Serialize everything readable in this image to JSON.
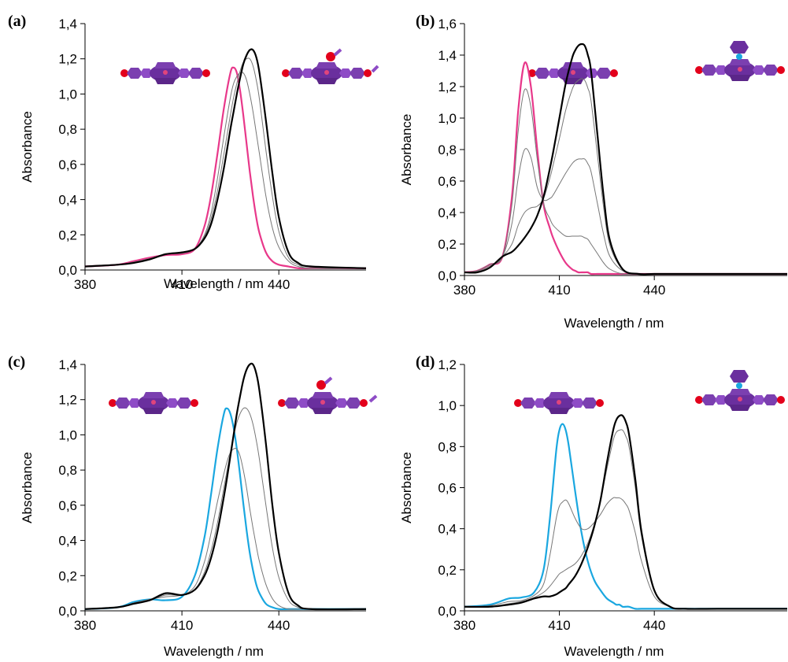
{
  "chart_data": [
    {
      "type": "line",
      "panel": "(a)",
      "xlabel": "Wavelength / nm",
      "ylabel": "Absorbance",
      "xlim": [
        380,
        467
      ],
      "ylim": [
        0,
        1.4
      ],
      "xticks": [
        380,
        410,
        440
      ],
      "yticks": [
        {
          "value": 0,
          "label": "0,0"
        },
        {
          "value": 0.2,
          "label": "0,2"
        },
        {
          "value": 0.4,
          "label": "0,4"
        },
        {
          "value": 0.6,
          "label": "0,6"
        },
        {
          "value": 0.8,
          "label": "0,8"
        },
        {
          "value": 1.0,
          "label": "1,0"
        },
        {
          "value": 1.2,
          "label": "1,2"
        },
        {
          "value": 1.4,
          "label": "1,4"
        }
      ],
      "x": [
        380,
        390,
        395,
        400,
        405,
        410,
        414,
        417,
        419,
        421,
        423,
        425,
        426,
        427,
        428,
        429,
        430,
        431,
        432,
        433,
        434,
        436,
        438,
        440,
        443,
        446,
        450,
        467
      ],
      "series": [
        {
          "color": "#e8388a",
          "values": [
            0.02,
            0.03,
            0.05,
            0.07,
            0.085,
            0.09,
            0.12,
            0.25,
            0.42,
            0.66,
            0.92,
            1.12,
            1.15,
            1.12,
            1.02,
            0.88,
            0.72,
            0.56,
            0.42,
            0.3,
            0.21,
            0.1,
            0.05,
            0.03,
            0.02,
            0.01,
            0.01,
            0.01
          ]
        },
        {
          "color": "#777777",
          "values": [
            0.02,
            0.03,
            0.045,
            0.065,
            0.09,
            0.095,
            0.12,
            0.2,
            0.32,
            0.52,
            0.76,
            0.98,
            1.06,
            1.1,
            1.12,
            1.12,
            1.08,
            1.0,
            0.9,
            0.78,
            0.66,
            0.42,
            0.24,
            0.13,
            0.05,
            0.02,
            0.01,
            0.01
          ]
        },
        {
          "color": "#777777",
          "values": [
            0.02,
            0.03,
            0.04,
            0.06,
            0.09,
            0.1,
            0.12,
            0.19,
            0.29,
            0.45,
            0.66,
            0.88,
            0.98,
            1.06,
            1.13,
            1.18,
            1.2,
            1.2,
            1.16,
            1.08,
            0.97,
            0.68,
            0.42,
            0.22,
            0.07,
            0.03,
            0.01,
            0.01
          ]
        },
        {
          "color": "#000000",
          "values": [
            0.02,
            0.03,
            0.04,
            0.06,
            0.09,
            0.1,
            0.12,
            0.18,
            0.26,
            0.4,
            0.58,
            0.8,
            0.9,
            1.0,
            1.09,
            1.17,
            1.22,
            1.25,
            1.25,
            1.21,
            1.12,
            0.85,
            0.55,
            0.3,
            0.1,
            0.04,
            0.02,
            0.01
          ]
        }
      ]
    },
    {
      "type": "line",
      "panel": "(b)",
      "xlabel": "Wavelength / nm",
      "ylabel": "Absorbance",
      "xlim": [
        380,
        482
      ],
      "ylim": [
        0,
        1.6
      ],
      "xticks": [
        380,
        410,
        440
      ],
      "yticks": [
        {
          "value": 0,
          "label": "0,0"
        },
        {
          "value": 0.2,
          "label": "0,2"
        },
        {
          "value": 0.4,
          "label": "0,4"
        },
        {
          "value": 0.6,
          "label": "0,6"
        },
        {
          "value": 0.8,
          "label": "0,8"
        },
        {
          "value": 1.0,
          "label": "1,0"
        },
        {
          "value": 1.2,
          "label": "1,2"
        },
        {
          "value": 1.4,
          "label": "1,4"
        },
        {
          "value": 1.6,
          "label": "1,6"
        }
      ],
      "x": [
        380,
        384,
        388,
        392,
        395,
        397,
        399,
        401,
        403,
        405,
        407,
        408,
        410,
        412,
        414,
        415,
        416,
        417,
        418,
        419,
        420,
        422,
        424,
        426,
        430,
        435,
        440,
        450,
        482
      ],
      "series": [
        {
          "color": "#e8388a",
          "values": [
            0.02,
            0.03,
            0.07,
            0.12,
            0.5,
            1.05,
            1.35,
            1.2,
            0.8,
            0.45,
            0.3,
            0.24,
            0.15,
            0.08,
            0.04,
            0.03,
            0.02,
            0.02,
            0.02,
            0.02,
            0.01,
            0.01,
            0.01,
            0.01,
            0.01,
            0.01,
            0.01,
            0.01,
            0.01
          ]
        },
        {
          "color": "#777777",
          "values": [
            0.02,
            0.03,
            0.07,
            0.12,
            0.45,
            0.92,
            1.18,
            1.07,
            0.74,
            0.46,
            0.36,
            0.32,
            0.28,
            0.25,
            0.25,
            0.25,
            0.25,
            0.25,
            0.24,
            0.23,
            0.2,
            0.14,
            0.08,
            0.04,
            0.01,
            0.01,
            0.01,
            0.01,
            0.01
          ]
        },
        {
          "color": "#777777",
          "values": [
            0.02,
            0.025,
            0.06,
            0.12,
            0.33,
            0.62,
            0.8,
            0.75,
            0.56,
            0.48,
            0.49,
            0.51,
            0.58,
            0.65,
            0.71,
            0.73,
            0.74,
            0.74,
            0.74,
            0.71,
            0.66,
            0.46,
            0.26,
            0.12,
            0.03,
            0.01,
            0.01,
            0.01,
            0.01
          ]
        },
        {
          "color": "#777777",
          "values": [
            0.02,
            0.02,
            0.05,
            0.12,
            0.2,
            0.32,
            0.4,
            0.43,
            0.44,
            0.49,
            0.62,
            0.7,
            0.87,
            1.05,
            1.18,
            1.22,
            1.24,
            1.25,
            1.24,
            1.19,
            1.11,
            0.77,
            0.43,
            0.19,
            0.04,
            0.01,
            0.01,
            0.01,
            0.01
          ]
        },
        {
          "color": "#000000",
          "values": [
            0.02,
            0.02,
            0.05,
            0.12,
            0.15,
            0.19,
            0.24,
            0.3,
            0.38,
            0.5,
            0.68,
            0.78,
            1.0,
            1.22,
            1.38,
            1.43,
            1.46,
            1.47,
            1.46,
            1.4,
            1.3,
            0.9,
            0.5,
            0.22,
            0.04,
            0.01,
            0.01,
            0.01,
            0.01
          ]
        }
      ]
    },
    {
      "type": "line",
      "panel": "(c)",
      "xlabel": "Wavelength / nm",
      "ylabel": "Absorbance",
      "xlim": [
        380,
        467
      ],
      "ylim": [
        0,
        1.4
      ],
      "xticks": [
        380,
        410,
        440
      ],
      "yticks": [
        {
          "value": 0,
          "label": "0,0"
        },
        {
          "value": 0.2,
          "label": "0,2"
        },
        {
          "value": 0.4,
          "label": "0,4"
        },
        {
          "value": 0.6,
          "label": "0,6"
        },
        {
          "value": 0.8,
          "label": "0,8"
        },
        {
          "value": 1.0,
          "label": "1,0"
        },
        {
          "value": 1.2,
          "label": "1,2"
        },
        {
          "value": 1.4,
          "label": "1,4"
        }
      ],
      "x": [
        380,
        390,
        395,
        400,
        405,
        410,
        414,
        417,
        419,
        421,
        423,
        424,
        425,
        426,
        427,
        428,
        429,
        430,
        431,
        432,
        433,
        434,
        436,
        438,
        440,
        443,
        446,
        450,
        467
      ],
      "series": [
        {
          "color": "#1aa7e0",
          "values": [
            0.01,
            0.02,
            0.05,
            0.065,
            0.06,
            0.08,
            0.2,
            0.42,
            0.66,
            0.92,
            1.12,
            1.15,
            1.12,
            1.04,
            0.92,
            0.77,
            0.61,
            0.46,
            0.33,
            0.23,
            0.15,
            0.1,
            0.04,
            0.02,
            0.01,
            0.01,
            0.01,
            0.01,
            0.01
          ]
        },
        {
          "color": "#777777",
          "values": [
            0.01,
            0.02,
            0.045,
            0.065,
            0.08,
            0.09,
            0.14,
            0.28,
            0.44,
            0.62,
            0.78,
            0.85,
            0.9,
            0.92,
            0.92,
            0.88,
            0.8,
            0.7,
            0.58,
            0.47,
            0.37,
            0.28,
            0.15,
            0.07,
            0.03,
            0.01,
            0.01,
            0.01,
            0.01
          ]
        },
        {
          "color": "#777777",
          "values": [
            0.01,
            0.02,
            0.04,
            0.06,
            0.09,
            0.09,
            0.12,
            0.22,
            0.34,
            0.5,
            0.7,
            0.8,
            0.9,
            0.99,
            1.07,
            1.12,
            1.15,
            1.15,
            1.12,
            1.06,
            0.97,
            0.86,
            0.6,
            0.36,
            0.19,
            0.06,
            0.02,
            0.01,
            0.01
          ]
        },
        {
          "color": "#000000",
          "values": [
            0.01,
            0.02,
            0.04,
            0.06,
            0.1,
            0.09,
            0.12,
            0.2,
            0.3,
            0.45,
            0.65,
            0.76,
            0.88,
            1.0,
            1.12,
            1.22,
            1.31,
            1.37,
            1.4,
            1.4,
            1.35,
            1.25,
            0.95,
            0.6,
            0.33,
            0.1,
            0.03,
            0.01,
            0.01
          ]
        }
      ]
    },
    {
      "type": "line",
      "panel": "(d)",
      "xlabel": "Wavelength / nm",
      "ylabel": "Absorbance",
      "xlim": [
        380,
        482
      ],
      "ylim": [
        0,
        1.2
      ],
      "xticks": [
        380,
        410,
        440
      ],
      "yticks": [
        {
          "value": 0,
          "label": "0,0"
        },
        {
          "value": 0.2,
          "label": "0,2"
        },
        {
          "value": 0.4,
          "label": "0,4"
        },
        {
          "value": 0.6,
          "label": "0,6"
        },
        {
          "value": 0.8,
          "label": "0,8"
        },
        {
          "value": 1.0,
          "label": "1,0"
        },
        {
          "value": 1.2,
          "label": "1,2"
        }
      ],
      "x": [
        380,
        388,
        394,
        398,
        402,
        405,
        407,
        409,
        410,
        411,
        412,
        413,
        415,
        417,
        419,
        421,
        423,
        425,
        427,
        428,
        429,
        430,
        431,
        432,
        434,
        436,
        440,
        445,
        450,
        460,
        482
      ],
      "series": [
        {
          "color": "#1aa7e0",
          "values": [
            0.02,
            0.03,
            0.06,
            0.065,
            0.09,
            0.2,
            0.45,
            0.78,
            0.88,
            0.91,
            0.88,
            0.8,
            0.58,
            0.38,
            0.24,
            0.15,
            0.1,
            0.06,
            0.04,
            0.03,
            0.03,
            0.02,
            0.02,
            0.02,
            0.01,
            0.01,
            0.01,
            0.01,
            0.01,
            0.01,
            0.01
          ]
        },
        {
          "color": "#777777",
          "values": [
            0.02,
            0.025,
            0.045,
            0.05,
            0.075,
            0.13,
            0.27,
            0.45,
            0.51,
            0.53,
            0.54,
            0.52,
            0.45,
            0.4,
            0.4,
            0.43,
            0.47,
            0.52,
            0.55,
            0.55,
            0.55,
            0.54,
            0.52,
            0.49,
            0.38,
            0.24,
            0.07,
            0.02,
            0.01,
            0.01,
            0.01
          ]
        },
        {
          "color": "#777777",
          "values": [
            0.02,
            0.02,
            0.035,
            0.045,
            0.065,
            0.09,
            0.12,
            0.16,
            0.18,
            0.19,
            0.2,
            0.21,
            0.23,
            0.27,
            0.33,
            0.42,
            0.54,
            0.69,
            0.83,
            0.87,
            0.88,
            0.88,
            0.85,
            0.8,
            0.6,
            0.36,
            0.1,
            0.02,
            0.01,
            0.01,
            0.01
          ]
        },
        {
          "color": "#000000",
          "values": [
            0.02,
            0.02,
            0.03,
            0.04,
            0.06,
            0.07,
            0.07,
            0.08,
            0.09,
            0.1,
            0.11,
            0.13,
            0.17,
            0.23,
            0.31,
            0.41,
            0.54,
            0.72,
            0.88,
            0.93,
            0.95,
            0.95,
            0.92,
            0.86,
            0.64,
            0.38,
            0.1,
            0.02,
            0.01,
            0.01,
            0.01
          ]
        }
      ]
    }
  ]
}
